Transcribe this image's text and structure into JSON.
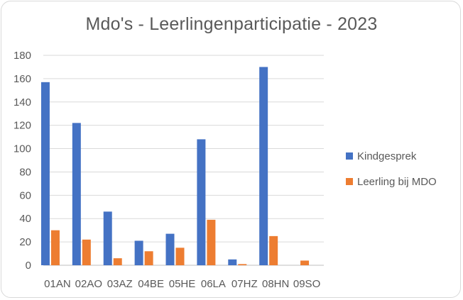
{
  "chart_data": {
    "type": "bar",
    "title": "Mdo's - Leerlingenparticipatie  - 2023",
    "categories": [
      "01AN",
      "02AO",
      "03AZ",
      "04BE",
      "05HE",
      "06LA",
      "07HZ",
      "08HN",
      "09SO"
    ],
    "series": [
      {
        "name": "Kindgesprek",
        "color": "#4472c4",
        "values": [
          157,
          122,
          46,
          21,
          27,
          108,
          5,
          170,
          0
        ]
      },
      {
        "name": "Leerling bij MDO",
        "color": "#ed7d31",
        "values": [
          30,
          22,
          6,
          12,
          15,
          39,
          1,
          25,
          4
        ]
      }
    ],
    "ylim": [
      0,
      180
    ],
    "yticks": [
      0,
      20,
      40,
      60,
      80,
      100,
      120,
      140,
      160,
      180
    ],
    "grid": true,
    "legend": "right"
  }
}
